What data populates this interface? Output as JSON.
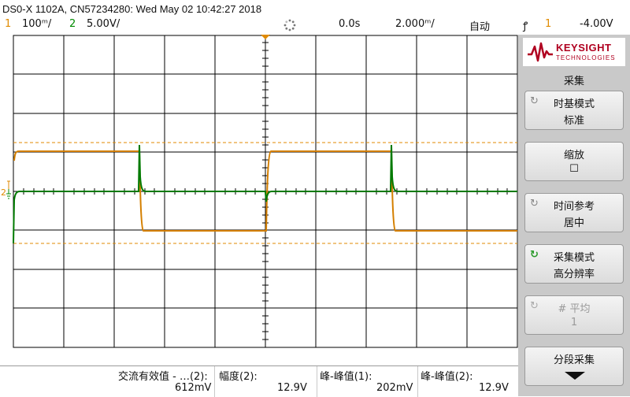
{
  "header": {
    "title": "DS0-X 1102A, CN57234280: Wed May 02 10:42:27 2018",
    "ch1_num": "1",
    "ch1_scale": "100ᵐ/",
    "ch2_num": "2",
    "ch2_scale": "5.00V/",
    "time_delay": "0.0s",
    "time_scale": "2.000ᵐ/",
    "trigger_mode": "自动",
    "trigger_icon": "ꝭ",
    "trigger_channel": "1",
    "trigger_level": "-4.00V"
  },
  "panel": {
    "logo_main": "KEYSIGHT",
    "logo_sub": "TECHNOLOGIES",
    "title": "采集",
    "keys": [
      {
        "line1": "时基模式",
        "line2": "标准"
      },
      {
        "line1": "缩放",
        "line2": "☐"
      },
      {
        "line1": "时间参考",
        "line2": "居中"
      },
      {
        "line1": "采集模式",
        "line2": "高分辨率"
      },
      {
        "line1": "# 平均",
        "line2": "1"
      },
      {
        "line1": "分段采集",
        "line2": ""
      }
    ]
  },
  "measurements": [
    {
      "label": "交流有效值 - …(2):",
      "value": "612mV"
    },
    {
      "label": "幅度(2):",
      "value": "12.9V"
    },
    {
      "label": "峰-峰值(1):",
      "value": "202mV"
    },
    {
      "label": "峰-峰值(2):",
      "value": "12.9V"
    }
  ],
  "colors": {
    "ch1": "#e08a00",
    "ch2": "#008a00",
    "grid": "#000000",
    "brand": "#b00020"
  }
}
